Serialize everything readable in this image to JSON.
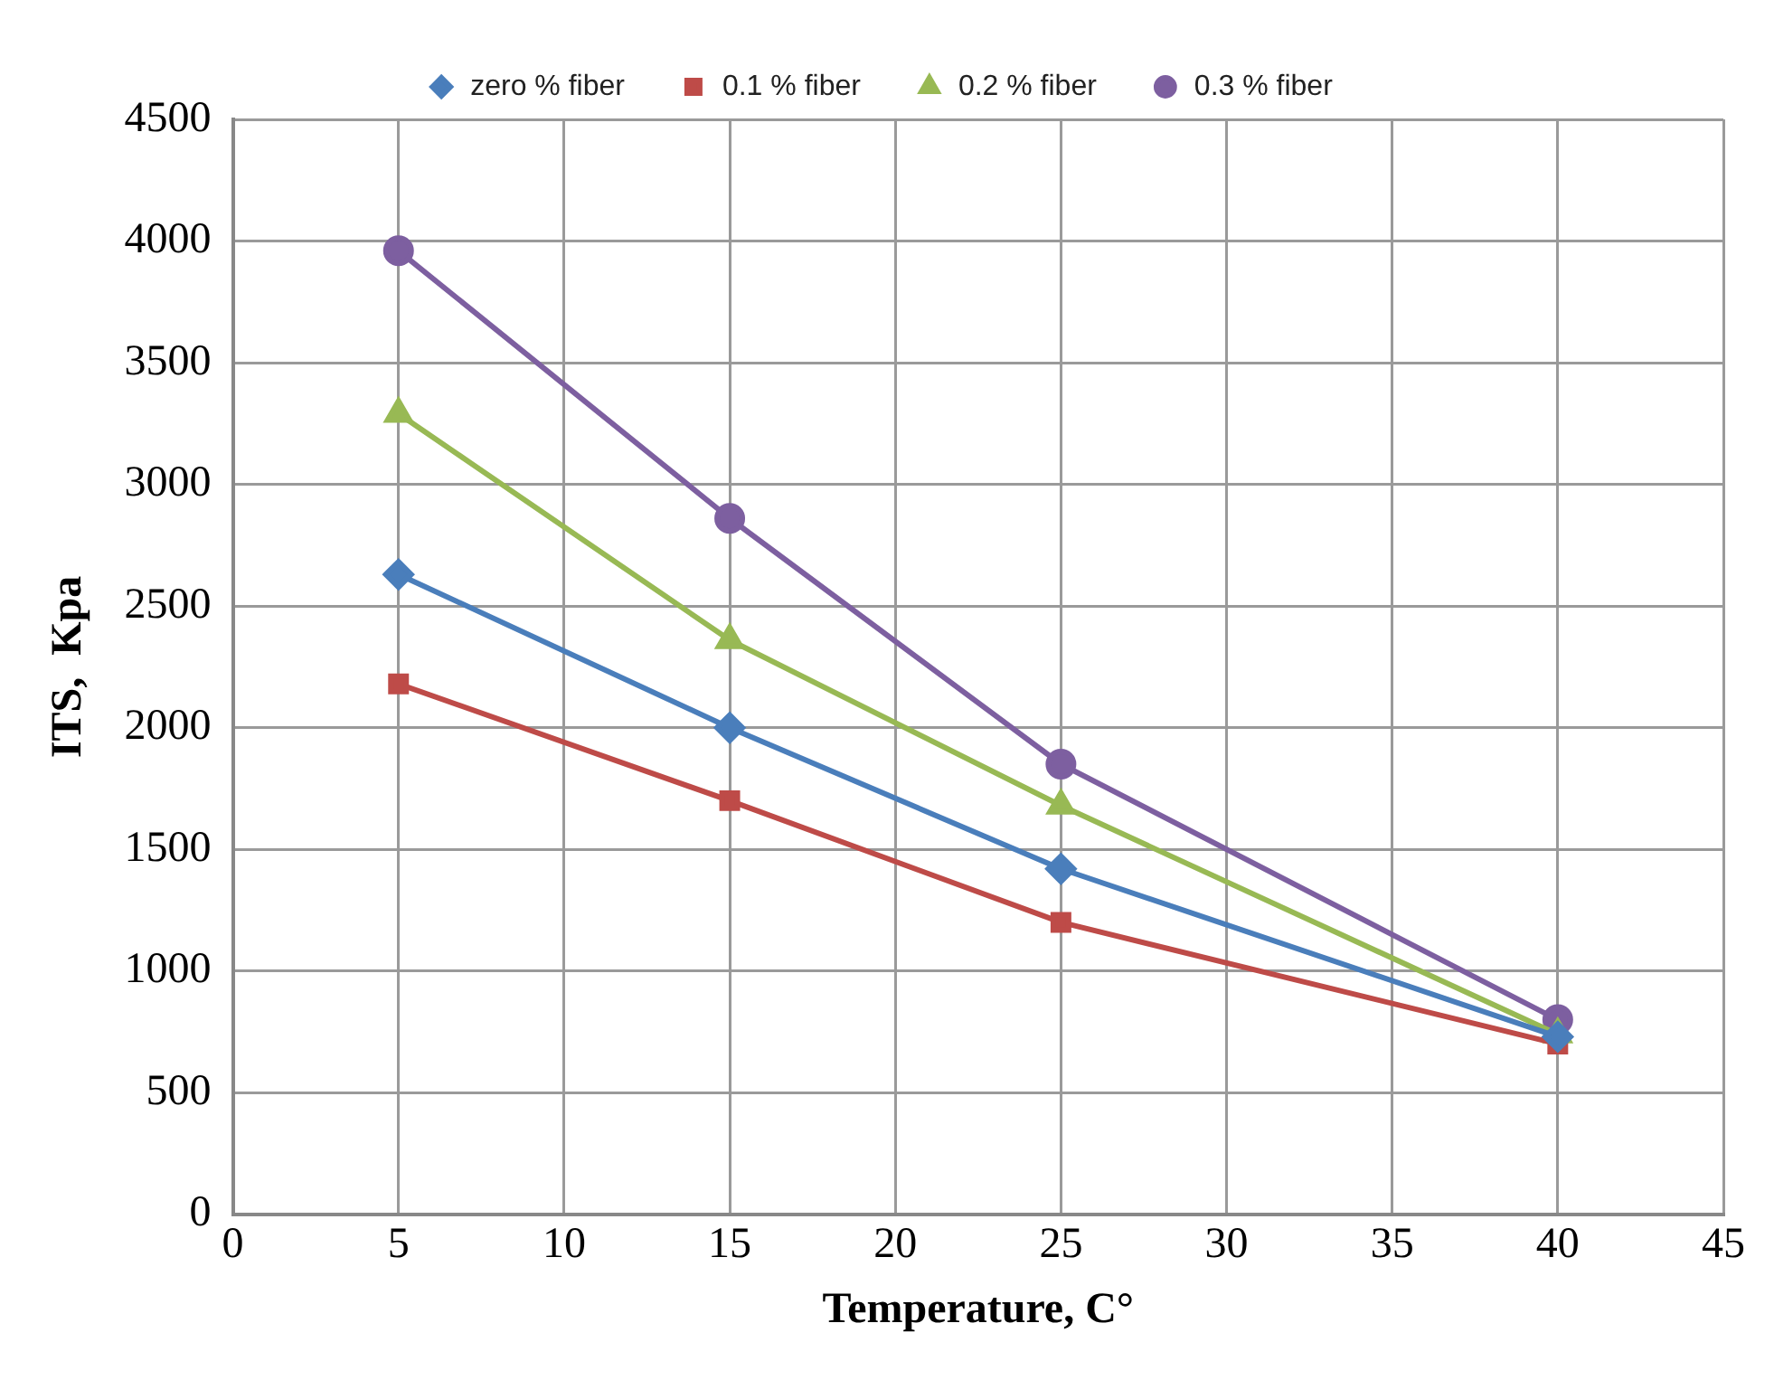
{
  "chart_data": {
    "type": "line",
    "xlabel": "Temperature, C°",
    "ylabel": "ITS,  Kpa",
    "x": [
      5,
      15,
      25,
      40
    ],
    "series": [
      {
        "name": "zero % fiber",
        "color": "#4a7ebb",
        "marker": "diamond",
        "values": [
          2630,
          2000,
          1420,
          730
        ]
      },
      {
        "name": "0.1 % fiber",
        "color": "#be4b48",
        "marker": "square",
        "values": [
          2180,
          1700,
          1200,
          700
        ]
      },
      {
        "name": "0.2 % fiber",
        "color": "#98b954",
        "marker": "triangle",
        "values": [
          3290,
          2360,
          1680,
          740
        ]
      },
      {
        "name": "0.3 % fiber",
        "color": "#7d5fa0",
        "marker": "circle",
        "values": [
          3960,
          2860,
          1850,
          800
        ]
      }
    ],
    "xlim": [
      0,
      45
    ],
    "xticks": [
      0,
      5,
      10,
      15,
      20,
      25,
      30,
      35,
      40,
      45
    ],
    "ylim": [
      0,
      4500
    ],
    "yticks": [
      0,
      500,
      1000,
      1500,
      2000,
      2500,
      3000,
      3500,
      4000,
      4500
    ],
    "grid": true,
    "legend": "top",
    "line_style": "solid"
  }
}
